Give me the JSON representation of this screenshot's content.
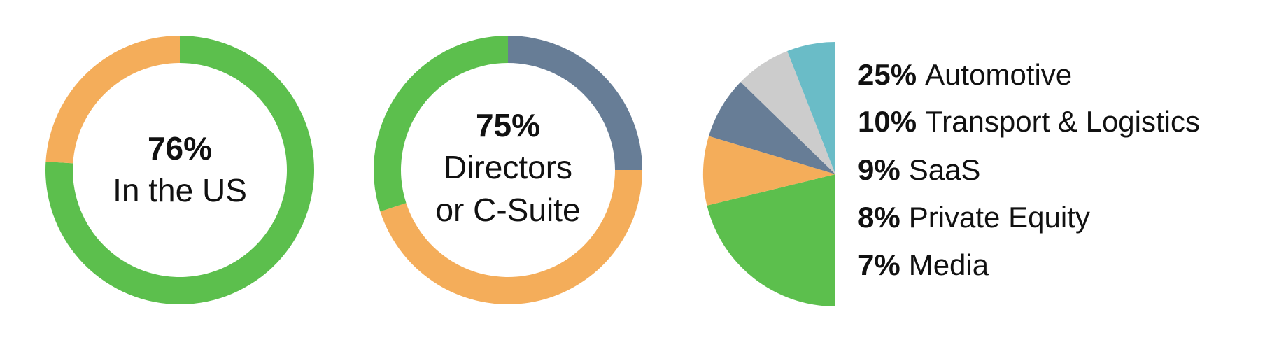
{
  "chart_data": [
    {
      "type": "donut",
      "categories": [
        "In the US",
        null
      ],
      "values": [
        76,
        24
      ],
      "value_labels": [
        "76%",
        null
      ],
      "colors": [
        "#5cbf4d",
        "#f4ad5a"
      ]
    },
    {
      "type": "donut",
      "center_label": "75%",
      "center_text": [
        "Directors",
        "or C-Suite"
      ],
      "values": [
        25,
        45,
        30
      ],
      "colors": [
        "#677d96",
        "#f4ad5a",
        "#5cbf4d"
      ]
    },
    {
      "type": "pie",
      "categories": [
        "Automotive",
        "Transport & Logistics",
        "SaaS",
        "Private Equity",
        "Media"
      ],
      "values": [
        25,
        10,
        9,
        8,
        7
      ],
      "value_labels": [
        "25%",
        "10%",
        "9%",
        "8%",
        "7%"
      ],
      "colors": [
        "#5cbf4d",
        "#f4ad5a",
        "#677d96",
        "#cccccc",
        "#6abcc7"
      ]
    }
  ]
}
